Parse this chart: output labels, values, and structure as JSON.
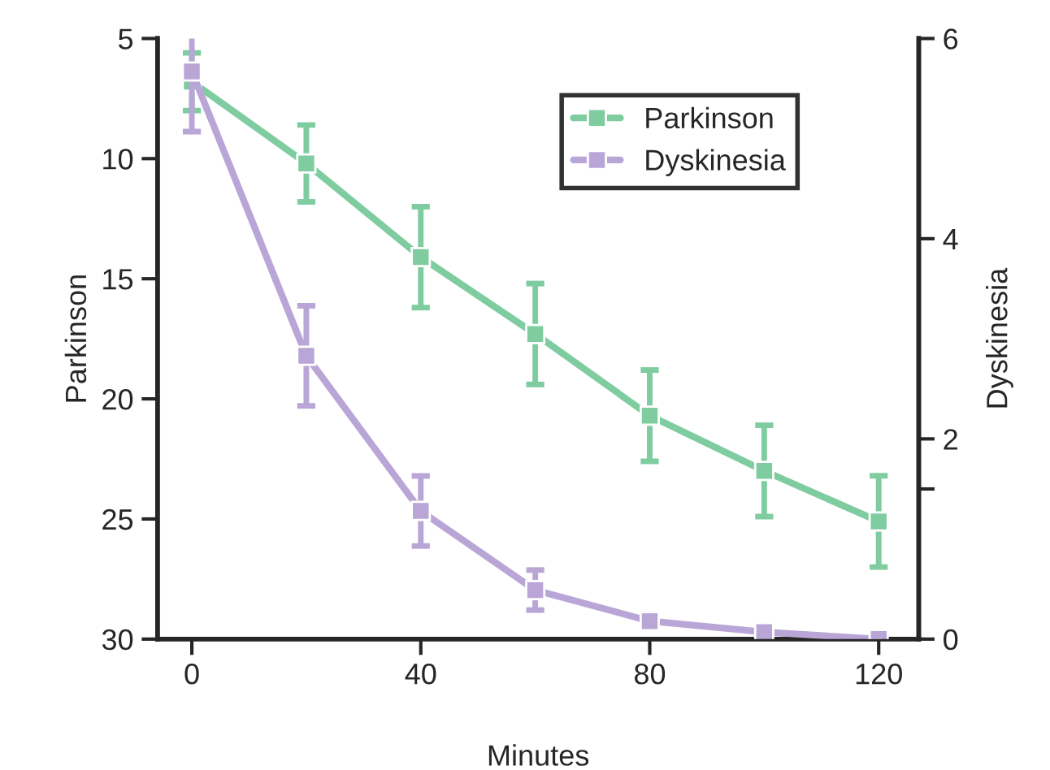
{
  "chart_data": {
    "type": "line",
    "xlabel": "Minutes",
    "ylabel": "Parkinson",
    "y2label": "Dyskinesia",
    "x": [
      0,
      20,
      40,
      60,
      80,
      100,
      120
    ],
    "series": [
      {
        "name": "Parkinson",
        "color": "#7fcca0",
        "values": [
          6.8,
          10.2,
          14.1,
          17.3,
          20.7,
          23.0,
          25.1
        ],
        "errors": [
          1.2,
          1.6,
          2.1,
          2.1,
          1.9,
          1.9,
          1.9
        ]
      },
      {
        "name": "Dyskinesia",
        "color": "#b9a6d6",
        "axis": "y2",
        "values": [
          5.67,
          2.83,
          1.28,
          0.49,
          0.18,
          0.07,
          0.0
        ],
        "errors": [
          0.6,
          0.5,
          0.35,
          0.2,
          0.07,
          null,
          null
        ]
      }
    ],
    "xlim": [
      -6,
      127
    ],
    "xticks": [
      0,
      40,
      80,
      120
    ],
    "ylim": [
      30,
      5
    ],
    "yticks": [
      5,
      10,
      15,
      20,
      25,
      30
    ],
    "y2lim": [
      0,
      6
    ],
    "y2ticks": [
      0,
      {
        "value": 1.5,
        "label": null
      },
      2,
      4,
      6
    ],
    "marker": "square",
    "line_style": "solid",
    "legend": "top right",
    "grid": false
  }
}
